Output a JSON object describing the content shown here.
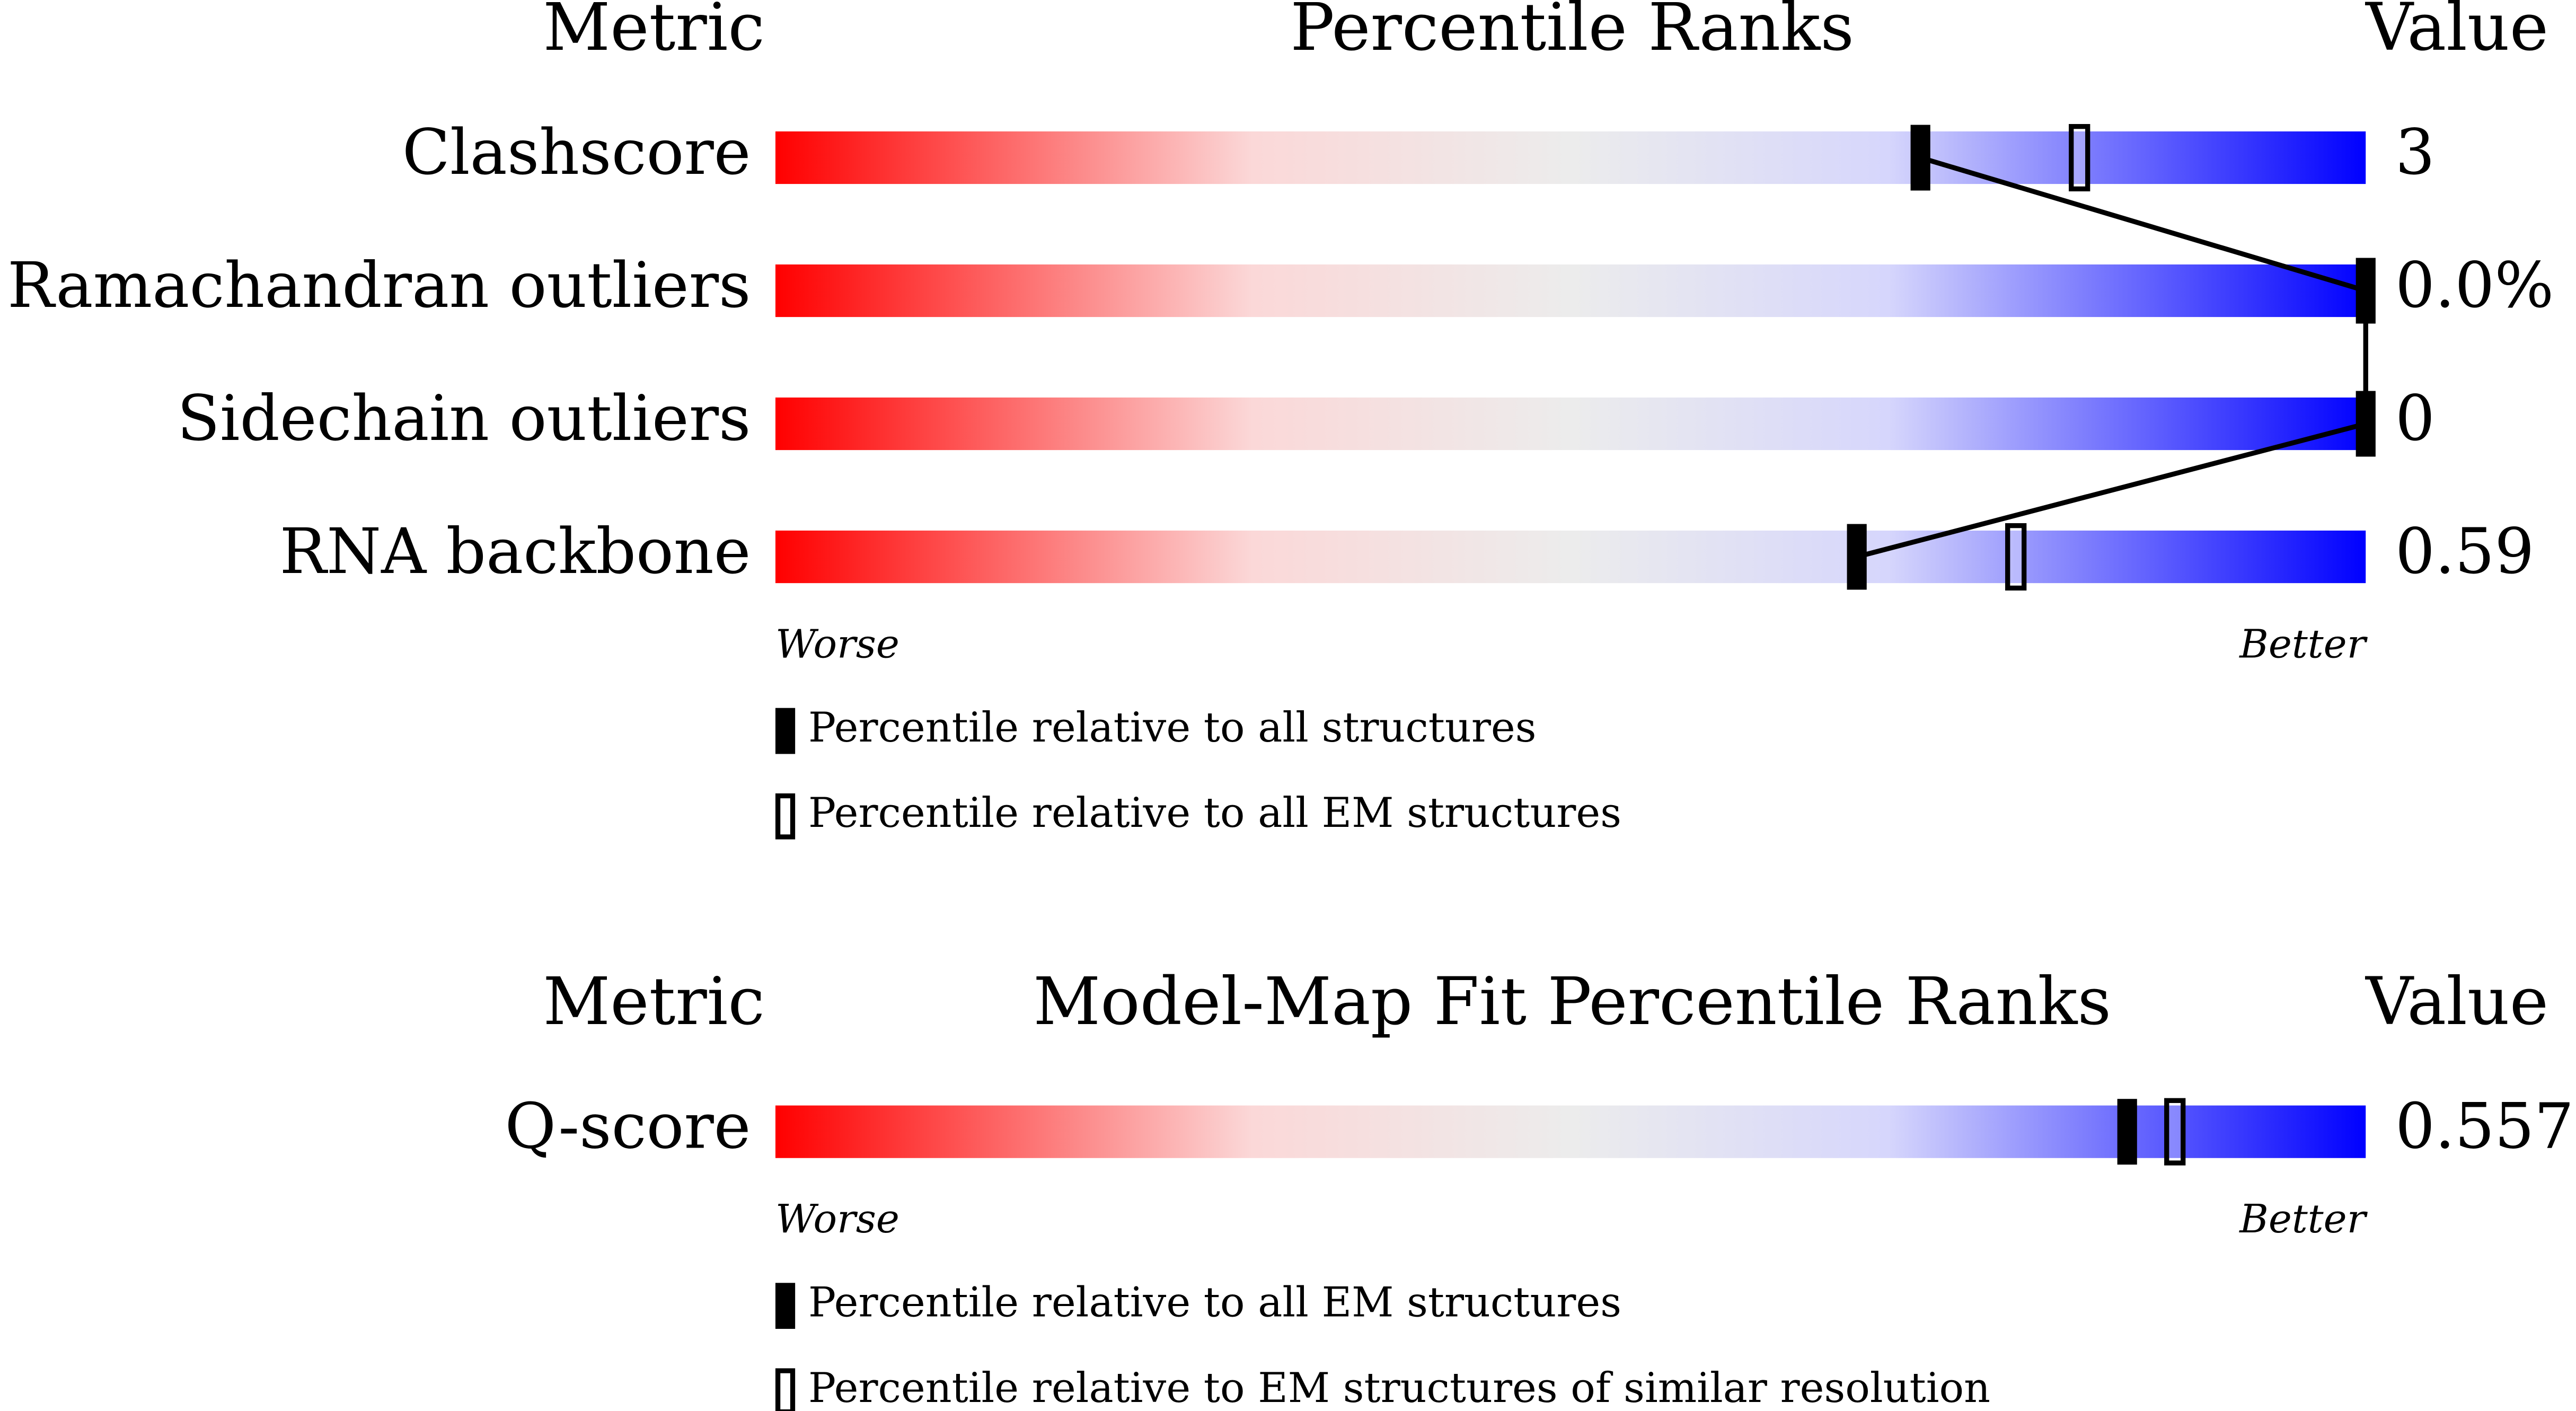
{
  "chart_data": [
    {
      "type": "percentile",
      "title": "Percentile Ranks",
      "metric_header": "Metric",
      "value_header": "Value",
      "categories": [
        "Clashscore",
        "Ramachandran outliers",
        "Sidechain outliers",
        "RNA backbone"
      ],
      "metric_values": [
        "3",
        "0.0%",
        "0",
        "0.59"
      ],
      "xlim": [
        0,
        100
      ],
      "low_label": "Worse",
      "high_label": "Better",
      "series": [
        {
          "name": "Percentile relative to all structures",
          "style": "filled",
          "color": "#000000",
          "values": [
            72,
            100,
            100,
            68
          ]
        },
        {
          "name": "Percentile relative to all EM structures",
          "style": "hollow",
          "color": "#000000",
          "values": [
            82,
            null,
            null,
            78
          ]
        }
      ]
    },
    {
      "type": "percentile",
      "title": "Model-Map Fit Percentile Ranks",
      "metric_header": "Metric",
      "value_header": "Value",
      "categories": [
        "Q-score"
      ],
      "metric_values": [
        "0.557"
      ],
      "xlim": [
        0,
        100
      ],
      "low_label": "Worse",
      "high_label": "Better",
      "series": [
        {
          "name": "Percentile relative to all EM structures",
          "style": "filled",
          "color": "#000000",
          "values": [
            85
          ]
        },
        {
          "name": "Percentile relative to EM structures of similar resolution",
          "style": "hollow",
          "color": "#000000",
          "values": [
            88
          ]
        }
      ]
    }
  ]
}
